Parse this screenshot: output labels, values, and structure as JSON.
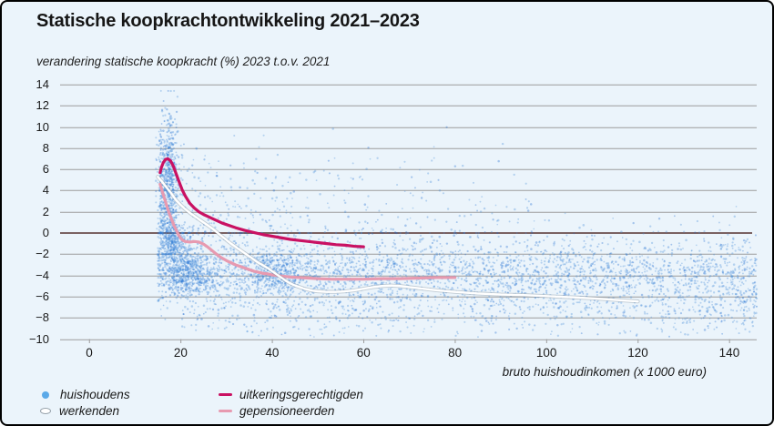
{
  "header": {
    "title": "Statische koopkrachtontwikkeling 2021–2023",
    "subtitle": "verandering statische koopkracht (%) 2023 t.o.v. 2021"
  },
  "colors": {
    "background": "#ebf4fb",
    "gridline": "#9c9c9c",
    "zero_line": "#7a6262",
    "scatter_blue": "#4a90da",
    "scatter_blue_dark": "#1e6bd0",
    "werkenden_line": "#ffffff",
    "uitkeringsgerechtigden_line": "#c91162",
    "gepensioneerden_line": "#e79ab0",
    "text": "#1a1a1a"
  },
  "chart_data": {
    "type": "scatter",
    "title": "Statische koopkrachtontwikkeling 2021–2023",
    "subtitle": "verandering statische koopkracht (%) 2023 t.o.v. 2021",
    "x_axis": {
      "title": "bruto huishoudinkomen (x 1000 euro)",
      "ticks": [
        0,
        20,
        40,
        60,
        80,
        100,
        120,
        140
      ],
      "min": 0,
      "max": 146
    },
    "y_axis": {
      "ticks": [
        14,
        12,
        10,
        8,
        6,
        4,
        2,
        0,
        -2,
        -4,
        -6,
        -8,
        -10
      ],
      "min": -10,
      "max": 14,
      "zero_line": true
    },
    "grid": true,
    "legend_position": "bottom",
    "legend": [
      {
        "label": "huishoudens",
        "marker": "dot",
        "color": "#5aa9e8"
      },
      {
        "label": "werkenden",
        "marker": "ellipse",
        "color": "#ffffff"
      },
      {
        "label": "uitkeringsgerechtigden",
        "marker": "dash",
        "color": "#c91162"
      },
      {
        "label": "gepensioneerden",
        "marker": "dash",
        "color": "#e79ab0"
      }
    ],
    "series": [
      {
        "name": "werkenden",
        "color": "#ffffff",
        "width": 2.4,
        "points": [
          [
            15,
            5.3
          ],
          [
            16,
            4.8
          ],
          [
            17,
            4.25
          ],
          [
            18,
            3.7
          ],
          [
            19,
            3.1
          ],
          [
            20,
            2.65
          ],
          [
            21,
            2.25
          ],
          [
            22,
            1.9
          ],
          [
            23,
            1.6
          ],
          [
            24,
            1.3
          ],
          [
            25,
            1.0
          ],
          [
            26,
            0.7
          ],
          [
            27,
            0.4
          ],
          [
            28,
            0.05
          ],
          [
            29,
            -0.3
          ],
          [
            30,
            -0.65
          ],
          [
            31,
            -1.0
          ],
          [
            32,
            -1.3
          ],
          [
            33,
            -1.6
          ],
          [
            34,
            -1.9
          ],
          [
            35,
            -2.2
          ],
          [
            36,
            -2.5
          ],
          [
            37,
            -2.8
          ],
          [
            38,
            -3.05
          ],
          [
            39,
            -3.3
          ],
          [
            40,
            -3.6
          ],
          [
            41,
            -3.9
          ],
          [
            42,
            -4.2
          ],
          [
            43,
            -4.5
          ],
          [
            44,
            -4.75
          ],
          [
            45,
            -4.95
          ],
          [
            46,
            -5.1
          ],
          [
            47,
            -5.25
          ],
          [
            48,
            -5.35
          ],
          [
            49,
            -5.45
          ],
          [
            50,
            -5.5
          ],
          [
            52,
            -5.55
          ],
          [
            54,
            -5.55
          ],
          [
            56,
            -5.5
          ],
          [
            58,
            -5.4
          ],
          [
            60,
            -5.25
          ],
          [
            62,
            -5.1
          ],
          [
            64,
            -5.0
          ],
          [
            66,
            -4.95
          ],
          [
            68,
            -5.0
          ],
          [
            70,
            -5.1
          ],
          [
            73,
            -5.25
          ],
          [
            76,
            -5.4
          ],
          [
            80,
            -5.55
          ],
          [
            85,
            -5.7
          ],
          [
            90,
            -5.8
          ],
          [
            95,
            -5.85
          ],
          [
            100,
            -5.95
          ],
          [
            105,
            -6.05
          ],
          [
            110,
            -6.15
          ],
          [
            115,
            -6.3
          ],
          [
            120,
            -6.45
          ]
        ]
      },
      {
        "name": "uitkeringsgerechtigden",
        "color": "#c91162",
        "width": 3.2,
        "points": [
          [
            15.5,
            5.7
          ],
          [
            15.8,
            6.2
          ],
          [
            16.2,
            6.65
          ],
          [
            16.7,
            6.95
          ],
          [
            17.2,
            7.0
          ],
          [
            17.8,
            6.8
          ],
          [
            18.4,
            6.3
          ],
          [
            19,
            5.6
          ],
          [
            19.6,
            4.9
          ],
          [
            20.3,
            4.1
          ],
          [
            21,
            3.5
          ],
          [
            22,
            2.8
          ],
          [
            23,
            2.35
          ],
          [
            24,
            2.0
          ],
          [
            25,
            1.75
          ],
          [
            26,
            1.55
          ],
          [
            27,
            1.35
          ],
          [
            28,
            1.15
          ],
          [
            29,
            0.95
          ],
          [
            30,
            0.8
          ],
          [
            32,
            0.5
          ],
          [
            34,
            0.25
          ],
          [
            36,
            0.05
          ],
          [
            38,
            -0.15
          ],
          [
            40,
            -0.3
          ],
          [
            42,
            -0.45
          ],
          [
            44,
            -0.6
          ],
          [
            46,
            -0.7
          ],
          [
            48,
            -0.8
          ],
          [
            50,
            -0.9
          ],
          [
            52,
            -1.0
          ],
          [
            54,
            -1.1
          ],
          [
            56,
            -1.15
          ],
          [
            58,
            -1.25
          ],
          [
            60,
            -1.3
          ]
        ]
      },
      {
        "name": "gepensioneerden",
        "color": "#e79ab0",
        "width": 3.2,
        "points": [
          [
            15.5,
            4.6
          ],
          [
            16,
            3.9
          ],
          [
            16.5,
            3.2
          ],
          [
            17,
            2.5
          ],
          [
            17.5,
            1.85
          ],
          [
            18,
            1.3
          ],
          [
            18.5,
            0.75
          ],
          [
            19,
            0.3
          ],
          [
            19.5,
            -0.15
          ],
          [
            20,
            -0.5
          ],
          [
            20.5,
            -0.7
          ],
          [
            21,
            -0.8
          ],
          [
            22,
            -0.85
          ],
          [
            23,
            -0.8
          ],
          [
            24,
            -0.85
          ],
          [
            25,
            -1.05
          ],
          [
            26,
            -1.35
          ],
          [
            27,
            -1.7
          ],
          [
            28,
            -2.05
          ],
          [
            29,
            -2.35
          ],
          [
            30,
            -2.6
          ],
          [
            31,
            -2.8
          ],
          [
            32,
            -3.0
          ],
          [
            33,
            -3.15
          ],
          [
            34,
            -3.3
          ],
          [
            35,
            -3.45
          ],
          [
            36,
            -3.6
          ],
          [
            37,
            -3.7
          ],
          [
            38,
            -3.8
          ],
          [
            39,
            -3.85
          ],
          [
            40,
            -3.95
          ],
          [
            42,
            -4.05
          ],
          [
            44,
            -4.15
          ],
          [
            46,
            -4.2
          ],
          [
            48,
            -4.25
          ],
          [
            50,
            -4.3
          ],
          [
            53,
            -4.35
          ],
          [
            56,
            -4.35
          ],
          [
            60,
            -4.35
          ],
          [
            64,
            -4.3
          ],
          [
            68,
            -4.3
          ],
          [
            72,
            -4.25
          ],
          [
            76,
            -4.2
          ],
          [
            80,
            -4.2
          ]
        ]
      }
    ],
    "scatter": {
      "name": "huishoudens",
      "seed": 20212023,
      "dot_radius": [
        0.8,
        1.3
      ],
      "alpha": 0.35,
      "dark_fraction": 0.25,
      "clusters": [
        {
          "n": 700,
          "x": {
            "type": "normal",
            "mean": 17.3,
            "sd": 1.1,
            "min": 14.6,
            "max": 22
          },
          "y": {
            "type": "normal",
            "mean": 4.3,
            "sd": 3.4,
            "min": -2,
            "max": 13.4
          }
        },
        {
          "n": 280,
          "x": {
            "type": "normal",
            "mean": 18.6,
            "sd": 1.4,
            "min": 15,
            "max": 24
          },
          "y": {
            "type": "normal",
            "mean": -0.9,
            "sd": 0.9,
            "min": -3,
            "max": 1
          }
        },
        {
          "n": 430,
          "x": {
            "type": "normal",
            "mean": 21.5,
            "sd": 2.4,
            "min": 15.5,
            "max": 30
          },
          "y": {
            "type": "normal",
            "mean": -3.6,
            "sd": 1.0,
            "min": -6,
            "max": -1.5
          }
        },
        {
          "n": 300,
          "x": {
            "type": "normal",
            "mean": 41,
            "sd": 3.2,
            "min": 32,
            "max": 50
          },
          "y": {
            "type": "normal",
            "mean": -3.8,
            "sd": 1.1,
            "min": -6.5,
            "max": -1.5
          }
        },
        {
          "n": 2750,
          "x": {
            "type": "power",
            "base": 15,
            "range": 131,
            "exp": 1.12
          },
          "y": {
            "type": "normal",
            "mean": -4.0,
            "sd": 1.4,
            "min": -8.5,
            "max": 0.5
          }
        },
        {
          "n": 650,
          "x": {
            "type": "power",
            "base": 15,
            "range": 131,
            "exp": 1.75
          },
          "y": {
            "type": "normal",
            "mean": -1.2,
            "sd": 1.5,
            "min": -3.5,
            "max": 2.5
          }
        },
        {
          "n": 430,
          "x": {
            "type": "power",
            "base": 15.5,
            "range": 82,
            "exp": 2.6
          },
          "y": {
            "type": "normal",
            "mean": 2.9,
            "sd": 2.7,
            "min": 0,
            "max": 13.4
          }
        },
        {
          "n": 620,
          "x": {
            "type": "power-right",
            "base": 146,
            "range": 126,
            "exp": 1.35
          },
          "y": {
            "type": "normal",
            "mean": -7.0,
            "sd": 1.0,
            "min": -9.8,
            "max": -5.3
          }
        },
        {
          "n": 140,
          "x": {
            "type": "uniform",
            "min": 22,
            "max": 146
          },
          "y": {
            "type": "uniform",
            "min": -9.7,
            "max": -7.8
          }
        }
      ]
    }
  }
}
